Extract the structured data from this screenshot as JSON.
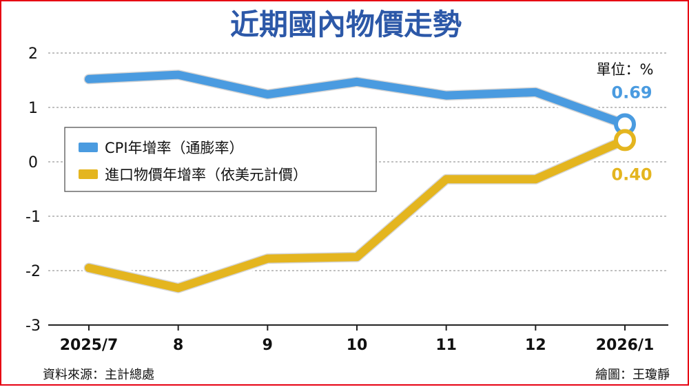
{
  "chart_data": {
    "type": "line",
    "title": "近期國內物價走勢",
    "unit_label": "單位：%",
    "categories": [
      "2025/7",
      "8",
      "9",
      "10",
      "11",
      "12",
      "2026/1"
    ],
    "ylim": [
      -3,
      2
    ],
    "yticks": [
      2,
      1,
      0,
      -1,
      -2,
      -3
    ],
    "grid": true,
    "legend_placement": "center-left",
    "series": [
      {
        "name": "CPI年增率（通膨率）",
        "values": [
          1.52,
          1.6,
          1.24,
          1.47,
          1.22,
          1.28,
          0.69
        ],
        "color": "#4a9be0",
        "end_label": "0.69"
      },
      {
        "name": "進口物價年增率（依美元計價）",
        "values": [
          -1.95,
          -2.32,
          -1.78,
          -1.75,
          -0.32,
          -0.32,
          0.4
        ],
        "color": "#e4b51f",
        "end_label": "0.40"
      }
    ],
    "source": "資料來源：主計總處",
    "credit": "繪圖：王瓊靜"
  }
}
